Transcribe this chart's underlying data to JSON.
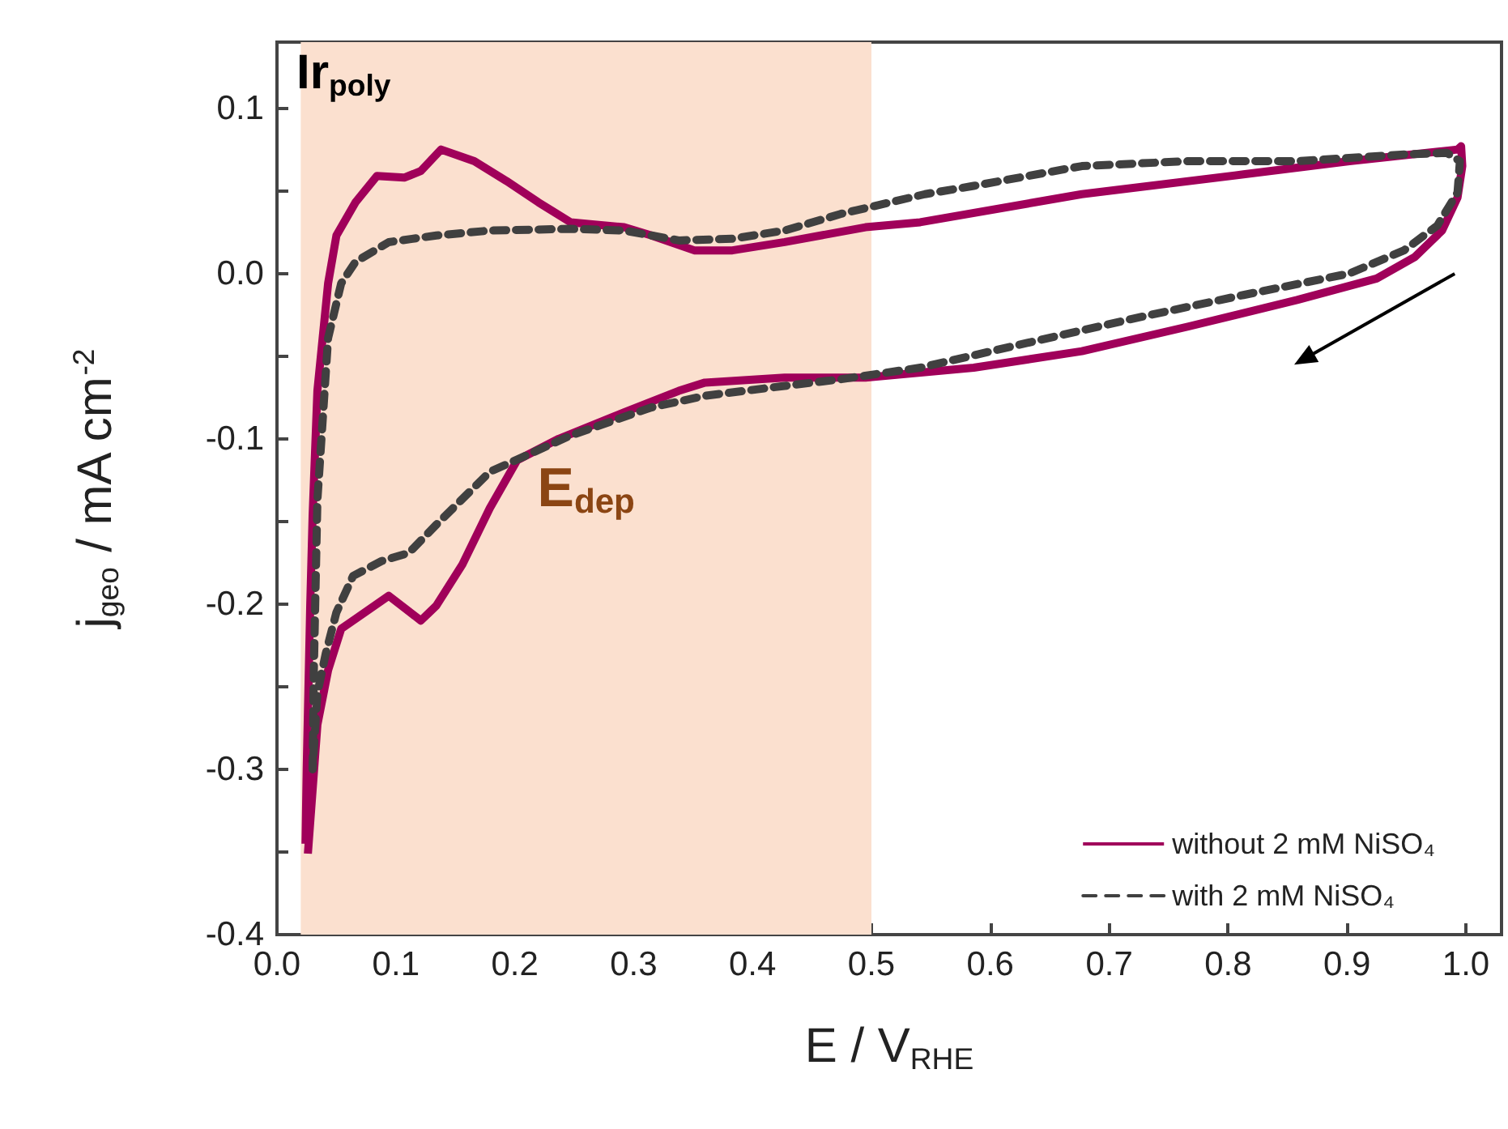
{
  "chart_data": {
    "type": "line",
    "xlabel": "E / V$_{RHE}$",
    "ylabel": "j$_{geo}$ / mA cm$^{-2}$",
    "annotations": [
      "Ir$_{poly}$"
    ],
    "xlim": [
      0,
      1.03
    ],
    "ylim": [
      -0.4,
      0.14
    ],
    "xticks": [
      {
        "value": 0,
        "label": "0.0"
      },
      {
        "value": 0.1,
        "label": "0.1"
      },
      {
        "value": 0.2,
        "label": "0.2"
      },
      {
        "value": 0.3,
        "label": "0.3"
      },
      {
        "value": 0.4,
        "label": "0.4"
      },
      {
        "value": 0.5,
        "label": "0.5"
      },
      {
        "value": 0.6,
        "label": "0.6"
      },
      {
        "value": 0.7,
        "label": "0.7"
      },
      {
        "value": 0.8,
        "label": "0.8"
      },
      {
        "value": 0.9,
        "label": "0.9"
      },
      {
        "value": 1,
        "label": "1.0"
      }
    ],
    "yticks": [
      {
        "value": -0.4,
        "label": "-0.4"
      },
      {
        "value": -0.35,
        "label": null
      },
      {
        "value": -0.3,
        "label": "-0.3"
      },
      {
        "value": -0.25,
        "label": null
      },
      {
        "value": -0.2,
        "label": "-0.2"
      },
      {
        "value": -0.15,
        "label": null
      },
      {
        "value": -0.1,
        "label": "-0.1"
      },
      {
        "value": -0.05,
        "label": null
      },
      {
        "value": 0,
        "label": "0.0"
      },
      {
        "value": 0.05,
        "label": null
      },
      {
        "value": 0.1,
        "label": "0.1"
      }
    ],
    "bands": [
      {
        "axis": "x",
        "from": 0.02,
        "to": 0.5,
        "label": "E$_{dep}$",
        "color": "#fbe0cf"
      }
    ],
    "grid": false,
    "legend": "bottom right",
    "marker": "none",
    "series": [
      {
        "name": "without 2 mM NiSO₄",
        "color": "#a0005a",
        "line_style": "solid",
        "x": [
          0.024,
          0.025,
          0.028,
          0.03,
          0.034,
          0.043,
          0.05,
          0.066,
          0.084,
          0.107,
          0.121,
          0.138,
          0.166,
          0.193,
          0.22,
          0.247,
          0.292,
          0.315,
          0.351,
          0.383,
          0.427,
          0.495,
          0.541,
          0.677,
          0.813,
          0.902,
          0.993,
          0.996,
          0.997,
          0.993,
          0.98,
          0.957,
          0.925,
          0.858,
          0.767,
          0.677,
          0.586,
          0.495,
          0.427,
          0.36,
          0.338,
          0.292,
          0.237,
          0.202,
          0.179,
          0.156,
          0.134,
          0.121,
          0.094,
          0.054,
          0.043,
          0.034,
          0.026
        ],
        "values": [
          -0.345,
          -0.3,
          -0.2,
          -0.146,
          -0.071,
          -0.006,
          0.023,
          0.043,
          0.059,
          0.058,
          0.062,
          0.075,
          0.068,
          0.056,
          0.043,
          0.031,
          0.028,
          0.023,
          0.014,
          0.014,
          0.019,
          0.028,
          0.031,
          0.048,
          0.06,
          0.068,
          0.075,
          0.077,
          0.065,
          0.046,
          0.026,
          0.01,
          -0.003,
          -0.016,
          -0.032,
          -0.047,
          -0.057,
          -0.063,
          -0.063,
          -0.066,
          -0.071,
          -0.084,
          -0.1,
          -0.113,
          -0.142,
          -0.176,
          -0.201,
          -0.21,
          -0.195,
          -0.215,
          -0.24,
          -0.273,
          -0.351
        ]
      },
      {
        "name": "with 2 mM NiSO₄",
        "color": "#404040",
        "line_style": "dashed",
        "x": [
          0.03,
          0.031,
          0.034,
          0.043,
          0.054,
          0.066,
          0.094,
          0.134,
          0.179,
          0.247,
          0.292,
          0.338,
          0.383,
          0.427,
          0.474,
          0.545,
          0.586,
          0.677,
          0.767,
          0.858,
          0.948,
          0.984,
          0.995,
          0.993,
          0.976,
          0.948,
          0.902,
          0.813,
          0.722,
          0.631,
          0.541,
          0.474,
          0.427,
          0.36,
          0.315,
          0.247,
          0.179,
          0.134,
          0.111,
          0.088,
          0.064,
          0.05,
          0.041,
          0.034,
          0.03
        ],
        "values": [
          -0.3,
          -0.24,
          -0.137,
          -0.039,
          -0.006,
          0.007,
          0.019,
          0.023,
          0.026,
          0.027,
          0.026,
          0.02,
          0.021,
          0.026,
          0.036,
          0.048,
          0.053,
          0.065,
          0.068,
          0.068,
          0.072,
          0.073,
          0.068,
          0.049,
          0.029,
          0.014,
          0.0,
          -0.013,
          -0.027,
          -0.042,
          -0.057,
          -0.064,
          -0.068,
          -0.074,
          -0.081,
          -0.098,
          -0.12,
          -0.152,
          -0.169,
          -0.174,
          -0.183,
          -0.205,
          -0.23,
          -0.254,
          -0.299
        ]
      }
    ]
  }
}
